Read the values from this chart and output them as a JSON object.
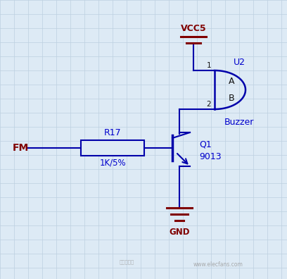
{
  "bg_color": "#ddeaf5",
  "grid_color": "#bdd0e0",
  "wire_color": "#0000aa",
  "dark_red": "#800000",
  "label_blue": "#0000cc",
  "label_red": "#800000",
  "vcc_label": "VCC5",
  "gnd_label": "GND",
  "fm_label": "FM",
  "r_label": "R17",
  "r_value": "1K/5%",
  "transistor_label": "Q1",
  "transistor_value": "9013",
  "buzzer_label": "Buzzer",
  "buzzer_ref": "U2",
  "pin1_label": "1",
  "pin2_label": "2",
  "pin_a_label": "A",
  "pin_b_label": "B",
  "watermark": "www.elecfans.com",
  "watermark2": "电子发烧友"
}
